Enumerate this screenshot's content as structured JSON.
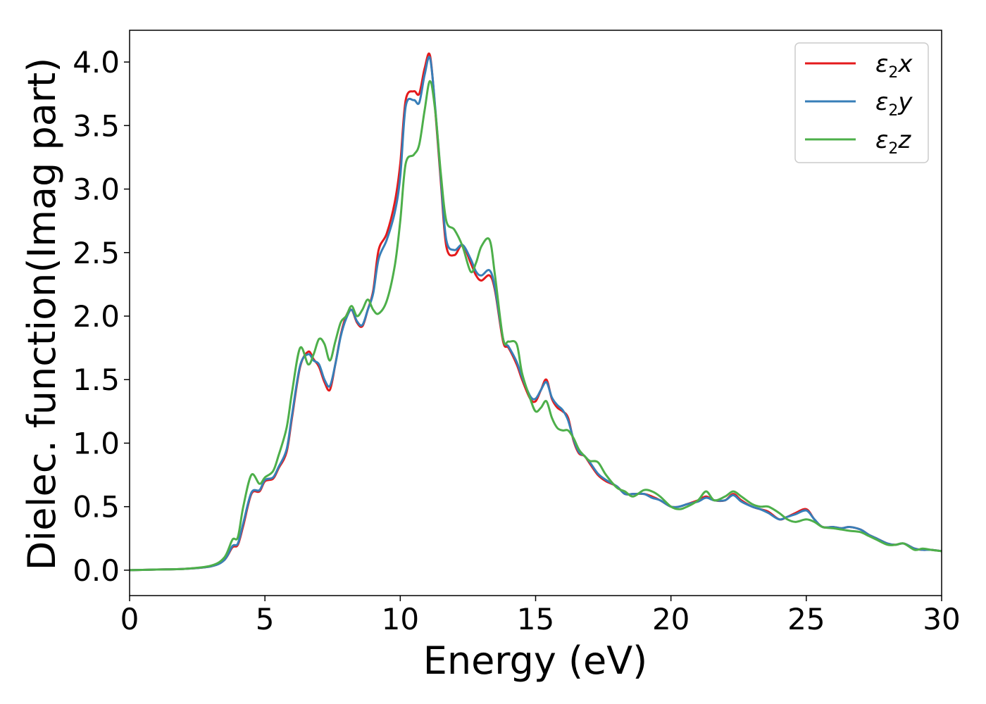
{
  "chart_data": {
    "type": "line",
    "title": "",
    "xlabel": "Energy (eV)",
    "ylabel": "Dielec. function(Imag part)",
    "xlim": [
      0,
      30
    ],
    "ylim": [
      -0.2,
      4.25
    ],
    "xticks": [
      0,
      5,
      10,
      15,
      20,
      25,
      30
    ],
    "xtick_labels": [
      "0",
      "5",
      "10",
      "15",
      "20",
      "25",
      "30"
    ],
    "yticks": [
      0.0,
      0.5,
      1.0,
      1.5,
      2.0,
      2.5,
      3.0,
      3.5,
      4.0
    ],
    "ytick_labels": [
      "0.0",
      "0.5",
      "1.0",
      "1.5",
      "2.0",
      "2.5",
      "3.0",
      "3.5",
      "4.0"
    ],
    "grid": false,
    "legend_position": "top-right",
    "series": [
      {
        "name": "ε2x",
        "legend": {
          "main": "ε",
          "sub": "2",
          "var": "x"
        },
        "color": "#e41a1c",
        "x": [
          0,
          1,
          2,
          3,
          3.5,
          3.8,
          4.0,
          4.2,
          4.5,
          4.8,
          5.0,
          5.3,
          5.5,
          5.8,
          6.0,
          6.3,
          6.6,
          6.8,
          7.0,
          7.2,
          7.4,
          7.6,
          7.8,
          8.0,
          8.2,
          8.4,
          8.6,
          8.8,
          9.0,
          9.2,
          9.5,
          9.8,
          10.0,
          10.2,
          10.5,
          10.7,
          10.9,
          11.1,
          11.3,
          11.5,
          11.7,
          12.0,
          12.3,
          12.6,
          12.8,
          13.0,
          13.3,
          13.5,
          13.8,
          14.0,
          14.3,
          14.5,
          14.8,
          15.0,
          15.2,
          15.4,
          15.6,
          15.8,
          16.0,
          16.2,
          16.4,
          16.6,
          16.8,
          17.0,
          17.3,
          17.6,
          18.0,
          18.3,
          18.6,
          19.0,
          19.3,
          19.6,
          20.0,
          20.3,
          20.6,
          21.0,
          21.3,
          21.6,
          22.0,
          22.3,
          22.6,
          23.0,
          23.3,
          23.6,
          24.0,
          24.3,
          24.6,
          25.0,
          25.3,
          25.6,
          26.0,
          26.3,
          26.6,
          27.0,
          27.3,
          27.6,
          28.0,
          28.3,
          28.6,
          29.0,
          29.3,
          29.6,
          30.0
        ],
        "y": [
          0.0,
          0.005,
          0.01,
          0.03,
          0.08,
          0.18,
          0.2,
          0.35,
          0.6,
          0.62,
          0.7,
          0.72,
          0.8,
          0.93,
          1.2,
          1.6,
          1.72,
          1.66,
          1.6,
          1.48,
          1.42,
          1.62,
          1.85,
          2.0,
          2.05,
          1.95,
          1.92,
          2.05,
          2.2,
          2.52,
          2.65,
          2.9,
          3.2,
          3.7,
          3.77,
          3.75,
          3.95,
          4.05,
          3.6,
          3.05,
          2.55,
          2.48,
          2.56,
          2.42,
          2.32,
          2.28,
          2.32,
          2.2,
          1.8,
          1.75,
          1.62,
          1.5,
          1.35,
          1.33,
          1.42,
          1.5,
          1.35,
          1.28,
          1.25,
          1.2,
          1.02,
          0.92,
          0.9,
          0.84,
          0.75,
          0.7,
          0.66,
          0.6,
          0.6,
          0.6,
          0.58,
          0.55,
          0.5,
          0.5,
          0.52,
          0.55,
          0.58,
          0.55,
          0.55,
          0.6,
          0.55,
          0.5,
          0.48,
          0.46,
          0.4,
          0.42,
          0.45,
          0.48,
          0.4,
          0.34,
          0.34,
          0.33,
          0.34,
          0.32,
          0.28,
          0.25,
          0.21,
          0.2,
          0.21,
          0.17,
          0.16,
          0.16,
          0.15
        ]
      },
      {
        "name": "ε2y",
        "legend": {
          "main": "ε",
          "sub": "2",
          "var": "y"
        },
        "color": "#377eb8",
        "x": [
          0,
          1,
          2,
          3,
          3.5,
          3.8,
          4.0,
          4.2,
          4.5,
          4.8,
          5.0,
          5.3,
          5.5,
          5.8,
          6.0,
          6.3,
          6.6,
          6.8,
          7.0,
          7.2,
          7.4,
          7.6,
          7.8,
          8.0,
          8.2,
          8.4,
          8.6,
          8.8,
          9.0,
          9.2,
          9.5,
          9.8,
          10.0,
          10.2,
          10.5,
          10.7,
          10.9,
          11.1,
          11.3,
          11.5,
          11.7,
          12.0,
          12.3,
          12.6,
          12.8,
          13.0,
          13.3,
          13.5,
          13.8,
          14.0,
          14.3,
          14.5,
          14.8,
          15.0,
          15.2,
          15.4,
          15.6,
          15.8,
          16.0,
          16.2,
          16.4,
          16.6,
          16.8,
          17.0,
          17.3,
          17.6,
          18.0,
          18.3,
          18.6,
          19.0,
          19.3,
          19.6,
          20.0,
          20.3,
          20.6,
          21.0,
          21.3,
          21.6,
          22.0,
          22.3,
          22.6,
          23.0,
          23.3,
          23.6,
          24.0,
          24.3,
          24.6,
          25.0,
          25.3,
          25.6,
          26.0,
          26.3,
          26.6,
          27.0,
          27.3,
          27.6,
          28.0,
          28.3,
          28.6,
          29.0,
          29.3,
          29.6,
          30.0
        ],
        "y": [
          0.0,
          0.005,
          0.01,
          0.03,
          0.08,
          0.19,
          0.21,
          0.37,
          0.61,
          0.63,
          0.71,
          0.73,
          0.81,
          0.95,
          1.22,
          1.61,
          1.7,
          1.65,
          1.62,
          1.5,
          1.45,
          1.62,
          1.84,
          1.98,
          2.05,
          1.96,
          1.93,
          2.05,
          2.18,
          2.45,
          2.6,
          2.82,
          3.1,
          3.65,
          3.7,
          3.68,
          3.9,
          4.03,
          3.62,
          3.08,
          2.6,
          2.52,
          2.56,
          2.45,
          2.35,
          2.32,
          2.36,
          2.22,
          1.82,
          1.76,
          1.64,
          1.52,
          1.37,
          1.35,
          1.42,
          1.48,
          1.36,
          1.3,
          1.26,
          1.18,
          1.03,
          0.93,
          0.9,
          0.85,
          0.76,
          0.71,
          0.66,
          0.6,
          0.6,
          0.6,
          0.57,
          0.55,
          0.5,
          0.5,
          0.52,
          0.54,
          0.57,
          0.55,
          0.55,
          0.59,
          0.54,
          0.5,
          0.48,
          0.45,
          0.4,
          0.42,
          0.44,
          0.47,
          0.4,
          0.34,
          0.34,
          0.33,
          0.34,
          0.32,
          0.28,
          0.25,
          0.21,
          0.2,
          0.21,
          0.17,
          0.16,
          0.16,
          0.15
        ]
      },
      {
        "name": "ε2z",
        "legend": {
          "main": "ε",
          "sub": "2",
          "var": "z"
        },
        "color": "#4daf4a",
        "x": [
          0,
          1,
          2,
          3,
          3.5,
          3.8,
          4.0,
          4.2,
          4.5,
          4.8,
          5.0,
          5.3,
          5.5,
          5.8,
          6.0,
          6.3,
          6.6,
          6.8,
          7.0,
          7.2,
          7.4,
          7.6,
          7.8,
          8.0,
          8.2,
          8.4,
          8.6,
          8.8,
          9.0,
          9.2,
          9.5,
          9.8,
          10.0,
          10.2,
          10.5,
          10.7,
          10.9,
          11.1,
          11.3,
          11.5,
          11.7,
          12.0,
          12.3,
          12.6,
          12.8,
          13.0,
          13.3,
          13.5,
          13.8,
          14.0,
          14.3,
          14.5,
          14.8,
          15.0,
          15.2,
          15.4,
          15.6,
          15.8,
          16.0,
          16.2,
          16.4,
          16.6,
          16.8,
          17.0,
          17.3,
          17.6,
          18.0,
          18.3,
          18.6,
          19.0,
          19.3,
          19.6,
          20.0,
          20.3,
          20.6,
          21.0,
          21.3,
          21.6,
          22.0,
          22.3,
          22.6,
          23.0,
          23.3,
          23.6,
          24.0,
          24.3,
          24.6,
          25.0,
          25.3,
          25.6,
          26.0,
          26.3,
          26.6,
          27.0,
          27.3,
          27.6,
          28.0,
          28.3,
          28.6,
          29.0,
          29.3,
          29.6,
          30.0
        ],
        "y": [
          0.0,
          0.005,
          0.01,
          0.035,
          0.1,
          0.24,
          0.26,
          0.5,
          0.75,
          0.68,
          0.73,
          0.78,
          0.9,
          1.12,
          1.4,
          1.75,
          1.62,
          1.7,
          1.82,
          1.78,
          1.65,
          1.8,
          1.95,
          2.0,
          2.08,
          2.0,
          2.05,
          2.13,
          2.05,
          2.02,
          2.12,
          2.4,
          2.75,
          3.2,
          3.27,
          3.35,
          3.62,
          3.85,
          3.6,
          3.12,
          2.75,
          2.68,
          2.55,
          2.35,
          2.42,
          2.55,
          2.6,
          2.32,
          1.82,
          1.8,
          1.78,
          1.55,
          1.35,
          1.25,
          1.28,
          1.33,
          1.2,
          1.12,
          1.1,
          1.1,
          1.04,
          0.95,
          0.9,
          0.86,
          0.85,
          0.75,
          0.65,
          0.62,
          0.58,
          0.63,
          0.62,
          0.58,
          0.5,
          0.48,
          0.5,
          0.55,
          0.62,
          0.55,
          0.58,
          0.62,
          0.58,
          0.52,
          0.5,
          0.5,
          0.45,
          0.4,
          0.38,
          0.4,
          0.38,
          0.34,
          0.33,
          0.32,
          0.31,
          0.3,
          0.27,
          0.24,
          0.2,
          0.2,
          0.21,
          0.16,
          0.17,
          0.16,
          0.15
        ]
      }
    ]
  }
}
